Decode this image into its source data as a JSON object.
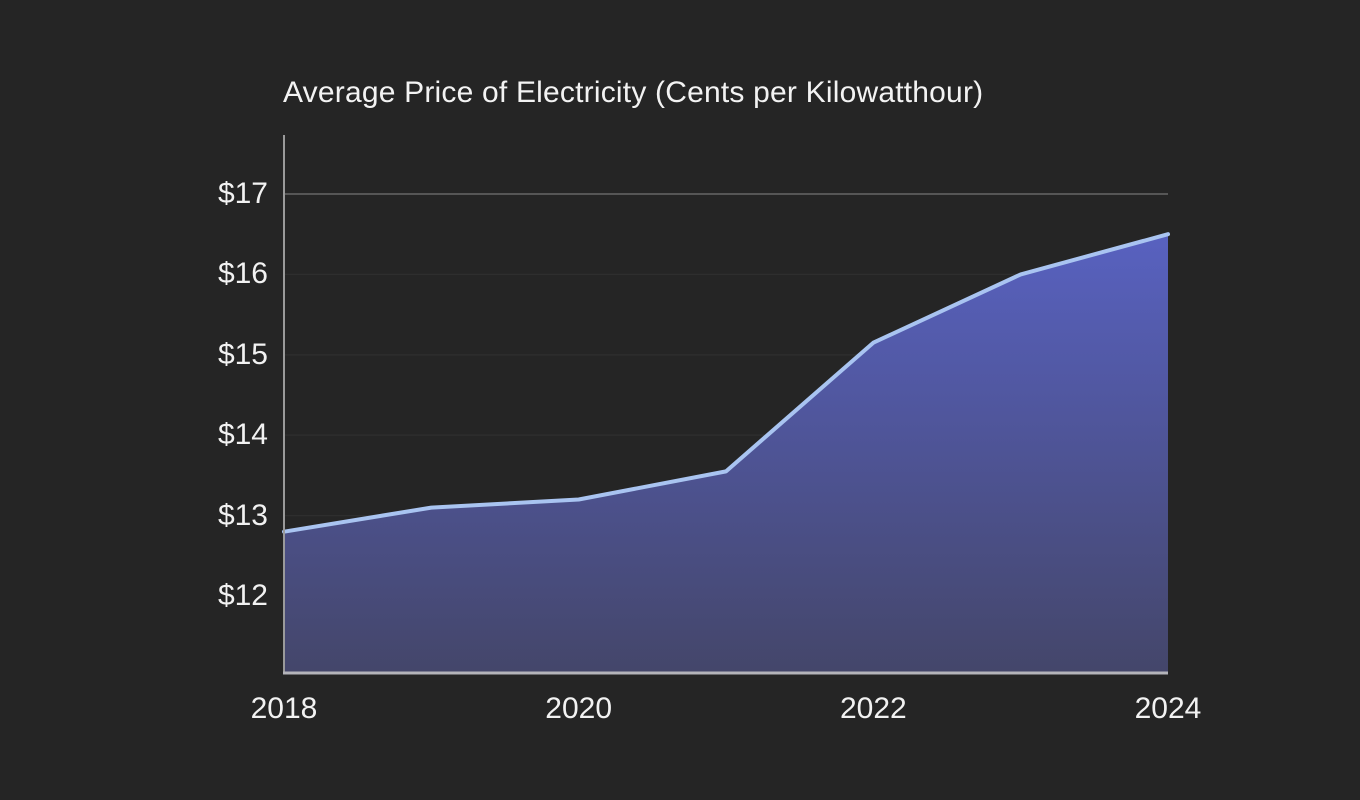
{
  "page": {
    "background": "#252525"
  },
  "chart_data": {
    "type": "area",
    "title": "Average Price of Electricity (Cents per Kilowatthour)",
    "x": [
      2018,
      2019,
      2020,
      2021,
      2022,
      2023,
      2024
    ],
    "series": [
      {
        "name": "Average price of electricity",
        "values": [
          12.8,
          13.1,
          13.2,
          13.55,
          15.15,
          16.0,
          16.5
        ]
      }
    ],
    "xlabel": "",
    "ylabel": "",
    "x_ticks": [
      2018,
      2020,
      2022,
      2024
    ],
    "x_tick_labels": [
      "2018",
      "2020",
      "2022",
      "2024"
    ],
    "y_ticks": [
      17,
      16,
      15,
      14,
      13,
      12
    ],
    "y_tick_labels": [
      "$17",
      "$16",
      "$15",
      "$14",
      "$13",
      "$12"
    ],
    "y_tick_prefix": "$",
    "xlim": [
      2018,
      2024
    ],
    "ylim": [
      11.05,
      17.75
    ],
    "grid": true,
    "legend": false,
    "colors": {
      "background": "#252525",
      "text": "#f2f2f2",
      "line": "#a9c4f1",
      "area_gradient_top": "#5a64c8",
      "area_gradient_bottom": "#44466a",
      "y_axis_line": "#9a9a9a",
      "x_axis_line": "#b4b4ba",
      "grid_top": "#565656",
      "grid_minor": "#2e2e2e"
    }
  }
}
